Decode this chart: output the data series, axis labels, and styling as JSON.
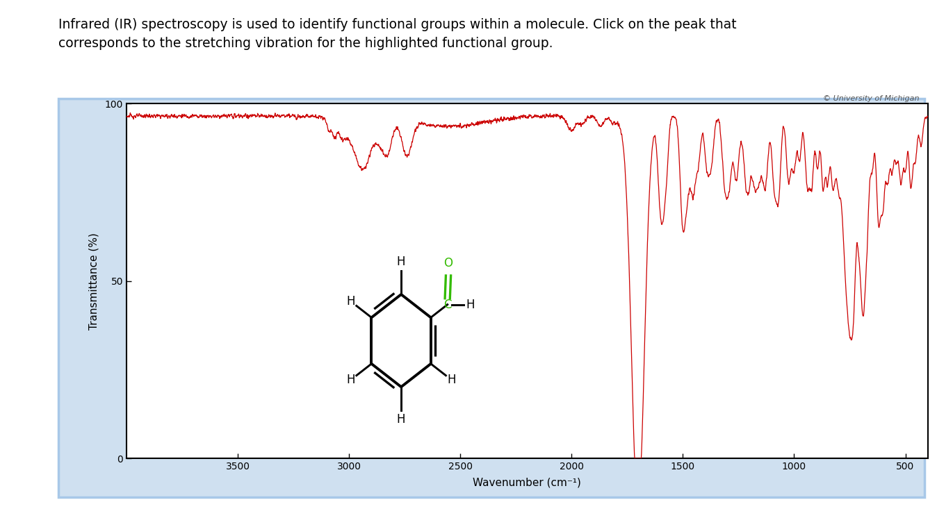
{
  "title_text": "Infrared (IR) spectroscopy is used to identify functional groups within a molecule. Click on the peak that\ncorresponds to the stretching vibration for the highlighted functional group.",
  "xlabel": "Wavenumber (cm⁻¹)",
  "ylabel": "Transmittance (%)",
  "copyright": "© University of Michigan",
  "xlim": [
    4000,
    400
  ],
  "ylim": [
    0,
    100
  ],
  "yticks": [
    0,
    50,
    100
  ],
  "xticks": [
    3500,
    3000,
    2500,
    2000,
    1500,
    1000,
    500
  ],
  "spectrum_color": "#cc0000",
  "background_color": "#ffffff",
  "outer_bg": "#cfe0f0",
  "title_fontsize": 13.5,
  "axis_fontsize": 11,
  "tick_fontsize": 10,
  "copyright_fontsize": 8
}
